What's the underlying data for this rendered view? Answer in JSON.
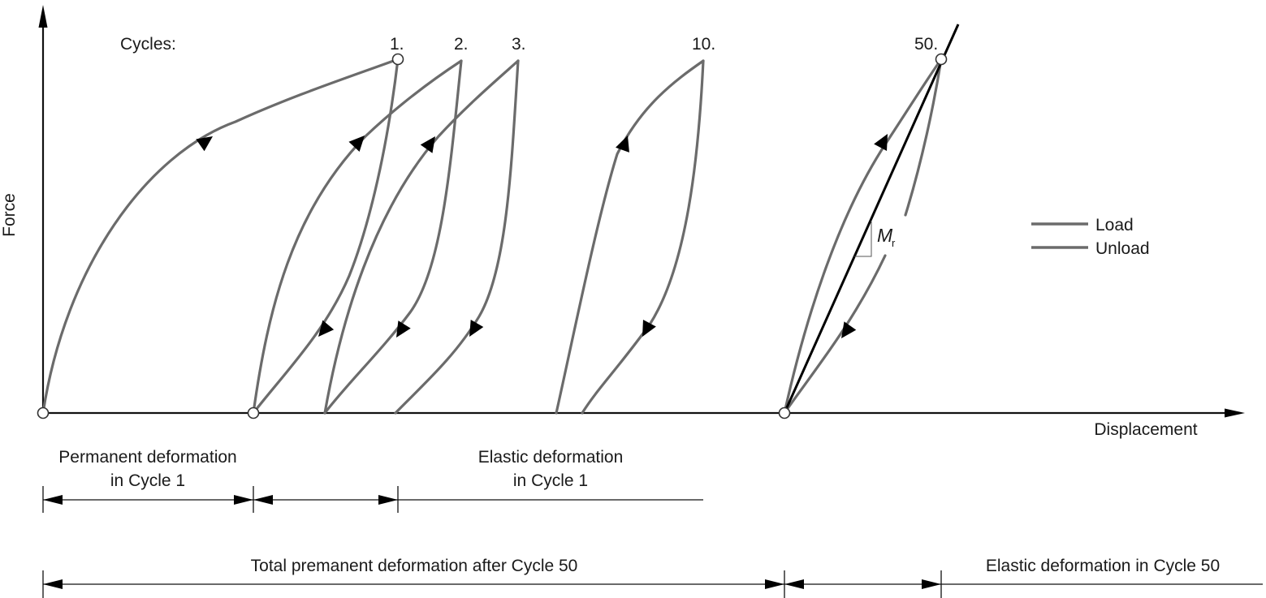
{
  "axes": {
    "y_label": "Force",
    "x_label": "Displacement"
  },
  "cycles": {
    "title": "Cycles:",
    "labels": [
      "1.",
      "2.",
      "3.",
      "10.",
      "50."
    ]
  },
  "legend": {
    "items": [
      {
        "label": "Load",
        "color": "#6b6b6b"
      },
      {
        "label": "Unload",
        "color": "#6b6b6b"
      }
    ]
  },
  "modulus": {
    "symbol": "M",
    "subscript": "r"
  },
  "dimensions": {
    "permanent_cycle1": [
      "Permanent deformation",
      "in Cycle 1"
    ],
    "elastic_cycle1": [
      "Elastic deformation",
      "in Cycle 1"
    ],
    "total_permanent": "Total premanent deformation after Cycle 50",
    "elastic_cycle50": "Elastic deformation in Cycle 50"
  },
  "colors": {
    "curve": "#6b6b6b",
    "axis": "#111111",
    "secant": "#000000"
  }
}
